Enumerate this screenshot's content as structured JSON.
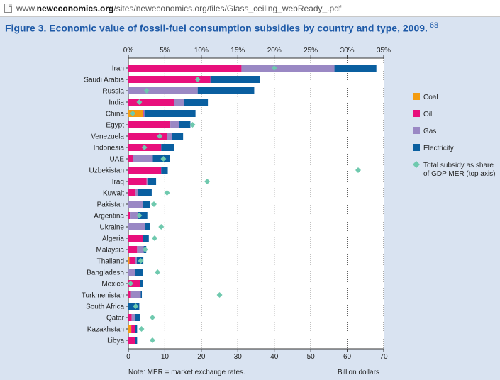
{
  "browser": {
    "url_prefix": "www.",
    "url_domain": "neweconomics.org",
    "url_path": "/sites/neweconomics.org/files/Glass_ceiling_webReady_.pdf"
  },
  "figure": {
    "title": "Figure 3. Economic value of fossil-fuel consumption subsidies by country and type, 2009.",
    "ref": "68",
    "note": "Note: MER = market exchange rates.",
    "unit_label": "Billion dollars"
  },
  "chart_data": {
    "type": "bar",
    "orientation": "horizontal",
    "stacked": true,
    "categories": [
      "Iran",
      "Saudi Arabia",
      "Russia",
      "India",
      "China",
      "Egypt",
      "Venezuela",
      "Indonesia",
      "UAE",
      "Uzbekistan",
      "Iraq",
      "Kuwait",
      "Pakistan",
      "Argentina",
      "Ukraine",
      "Algeria",
      "Malaysia",
      "Thailand",
      "Bangladesh",
      "Mexico",
      "Turkmenistan",
      "South Africa",
      "Qatar",
      "Kazakhstan",
      "Libya"
    ],
    "series": [
      {
        "name": "Coal",
        "color": "#f39c12",
        "values": [
          0,
          0,
          0,
          0,
          4,
          0,
          0,
          0,
          0,
          0,
          0,
          0,
          0,
          0,
          0,
          0,
          0,
          0.3,
          0,
          0,
          0,
          0,
          0,
          0.8,
          0
        ]
      },
      {
        "name": "Oil",
        "color": "#e8107c",
        "values": [
          31,
          22.5,
          0,
          12.5,
          0.2,
          11.5,
          10.5,
          9,
          1.2,
          9,
          5,
          2,
          0,
          0.6,
          0,
          4,
          2.4,
          1.6,
          0,
          3.3,
          0.7,
          0,
          0.9,
          1,
          1.8
        ]
      },
      {
        "name": "Gas",
        "color": "#9a88c4",
        "values": [
          25.5,
          0,
          19,
          2.8,
          0.2,
          2.5,
          1.5,
          0,
          5.5,
          0,
          0.3,
          0.7,
          4,
          2,
          4.5,
          0,
          1.8,
          0.4,
          1.8,
          0,
          2.7,
          0,
          1,
          0,
          0
        ]
      },
      {
        "name": "Electricity",
        "color": "#0a5fa0",
        "values": [
          11.5,
          13.5,
          15.5,
          6.5,
          14,
          3,
          3,
          3.5,
          4.7,
          1.8,
          2.3,
          3.7,
          2,
          2.6,
          1.5,
          1.6,
          0.7,
          1.8,
          2.1,
          0.6,
          0.3,
          3,
          1.3,
          0.6,
          0.6
        ]
      }
    ],
    "gdp_share": {
      "name": "Total subsidy as share of GDP MER (top axis)",
      "color": "#6fc9ae",
      "values": [
        20,
        9.5,
        2.5,
        1.5,
        0.6,
        8.8,
        4.3,
        2.2,
        4.8,
        31.5,
        10.8,
        5.3,
        3.5,
        1.5,
        4.5,
        3.6,
        2.3,
        1.7,
        4,
        0.3,
        12.5,
        1,
        3.3,
        1.8,
        3.3
      ]
    },
    "xlabel": "Billion dollars",
    "xlim": [
      0,
      70
    ],
    "xticks": [
      0,
      10,
      20,
      30,
      40,
      50,
      60,
      70
    ],
    "top_axis": {
      "lim": [
        0,
        35
      ],
      "ticks": [
        "0%",
        "5%",
        "10%",
        "15%",
        "20%",
        "25%",
        "30%",
        "35%"
      ]
    },
    "legend_position": "right",
    "grid": "vertical dotted"
  }
}
